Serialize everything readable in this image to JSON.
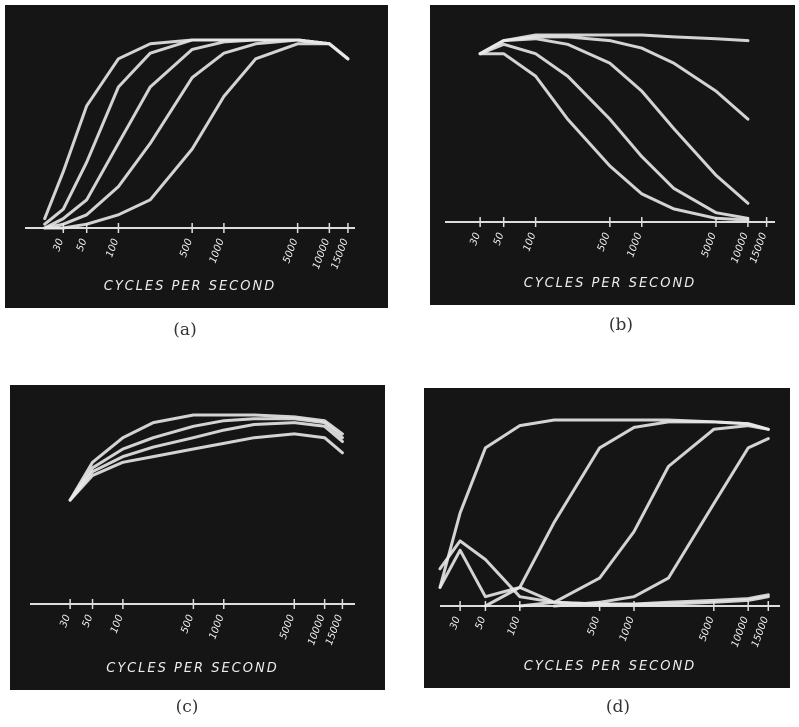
{
  "chart_data": [
    {
      "type": "line",
      "caption": "(a)",
      "xlabel": "CYCLES PER SECOND",
      "log_x": true,
      "xlim": [
        13,
        17500
      ],
      "xticks": [
        30,
        50,
        100,
        500,
        1000,
        5000,
        10000,
        15000
      ],
      "ylim": [
        0,
        1
      ],
      "x": [
        20,
        30,
        50,
        100,
        200,
        500,
        1000,
        2000,
        5000,
        10000,
        15000
      ],
      "series": [
        {
          "color": "#e8e8e8",
          "values": [
            0.05,
            0.3,
            0.65,
            0.9,
            0.98,
            1,
            1,
            1,
            1,
            0.98,
            0.9
          ]
        },
        {
          "color": "#e8e8e8",
          "values": [
            0.02,
            0.1,
            0.35,
            0.75,
            0.93,
            1,
            1,
            1,
            1,
            0.98,
            0.9
          ]
        },
        {
          "color": "#e8e8e8",
          "values": [
            0,
            0.05,
            0.15,
            0.45,
            0.75,
            0.95,
            0.99,
            1,
            1,
            0.98,
            0.9
          ]
        },
        {
          "color": "#e8e8e8",
          "values": [
            0,
            0.02,
            0.07,
            0.22,
            0.45,
            0.8,
            0.93,
            0.98,
            1,
            0.98,
            0.9
          ]
        },
        {
          "color": "#e8e8e8",
          "values": [
            0,
            0,
            0.02,
            0.07,
            0.15,
            0.42,
            0.7,
            0.9,
            0.98,
            0.98,
            0.9
          ]
        }
      ]
    },
    {
      "type": "line",
      "caption": "(b)",
      "xlabel": "CYCLES PER SECOND",
      "log_x": true,
      "xlim": [
        14,
        18000
      ],
      "xticks": [
        30,
        50,
        100,
        500,
        1000,
        5000,
        10000,
        15000
      ],
      "ylim": [
        0,
        1
      ],
      "x": [
        20,
        30,
        50,
        100,
        200,
        500,
        1000,
        2000,
        5000,
        10000,
        15000
      ],
      "series": [
        {
          "color": "#e8e8e8",
          "values": [
            null,
            0.9,
            0.97,
            1,
            1,
            1,
            1,
            0.99,
            0.98,
            0.97,
            null
          ]
        },
        {
          "color": "#e8e8e8",
          "values": [
            null,
            0.9,
            0.97,
            0.99,
            0.99,
            0.97,
            0.93,
            0.85,
            0.7,
            0.55,
            null
          ]
        },
        {
          "color": "#e8e8e8",
          "values": [
            null,
            0.9,
            0.97,
            0.98,
            0.95,
            0.85,
            0.7,
            0.5,
            0.25,
            0.1,
            null
          ]
        },
        {
          "color": "#e8e8e8",
          "values": [
            null,
            0.9,
            0.95,
            0.9,
            0.78,
            0.55,
            0.35,
            0.18,
            0.05,
            0.02,
            null
          ]
        },
        {
          "color": "#e8e8e8",
          "values": [
            null,
            0.9,
            0.9,
            0.78,
            0.55,
            0.3,
            0.15,
            0.07,
            0.02,
            0.01,
            null
          ]
        }
      ]
    },
    {
      "type": "line",
      "caption": "(c)",
      "xlabel": "CYCLES PER SECOND",
      "log_x": true,
      "xlim": [
        12,
        20000
      ],
      "xticks": [
        30,
        50,
        100,
        500,
        1000,
        5000,
        10000,
        15000
      ],
      "ylim": [
        0,
        1
      ],
      "x": [
        20,
        30,
        50,
        100,
        200,
        500,
        1000,
        2000,
        5000,
        10000,
        15000
      ],
      "series": [
        {
          "color": "#e8e8e8",
          "values": [
            null,
            0.55,
            0.75,
            0.88,
            0.96,
            1,
            1,
            1,
            0.99,
            0.97,
            0.9
          ]
        },
        {
          "color": "#e8e8e8",
          "values": [
            null,
            0.55,
            0.72,
            0.82,
            0.88,
            0.94,
            0.97,
            0.98,
            0.98,
            0.96,
            0.88
          ]
        },
        {
          "color": "#e8e8e8",
          "values": [
            null,
            0.55,
            0.7,
            0.78,
            0.83,
            0.88,
            0.92,
            0.95,
            0.96,
            0.94,
            0.86
          ]
        },
        {
          "color": "#e8e8e8",
          "values": [
            null,
            0.55,
            0.68,
            0.75,
            0.78,
            0.82,
            0.85,
            0.88,
            0.9,
            0.88,
            0.8
          ]
        }
      ]
    },
    {
      "type": "line",
      "caption": "(d)",
      "xlabel": "CYCLES PER SECOND",
      "log_x": true,
      "xlim": [
        20,
        19000
      ],
      "xticks": [
        30,
        50,
        100,
        500,
        1000,
        5000,
        10000,
        15000
      ],
      "ylim": [
        0,
        1
      ],
      "x": [
        20,
        30,
        50,
        100,
        200,
        500,
        1000,
        2000,
        5000,
        10000,
        15000
      ],
      "series": [
        {
          "color": "#e8e8e8",
          "values": [
            0.1,
            0.5,
            0.85,
            0.97,
            1,
            1,
            1,
            1,
            0.99,
            0.98,
            0.95
          ]
        },
        {
          "color": "#e8e8e8",
          "values": [
            null,
            null,
            0,
            0.1,
            0.45,
            0.85,
            0.96,
            0.99,
            0.99,
            0.98,
            0.95
          ]
        },
        {
          "color": "#e8e8e8",
          "values": [
            null,
            null,
            null,
            0,
            0.02,
            0.15,
            0.4,
            0.75,
            0.95,
            0.97,
            0.95
          ]
        },
        {
          "color": "#e8e8e8",
          "values": [
            null,
            null,
            null,
            null,
            0,
            0.02,
            0.05,
            0.15,
            0.55,
            0.85,
            0.9
          ]
        },
        {
          "color": "#e8e8e8",
          "values": [
            0.2,
            0.35,
            0.25,
            0.05,
            0.02,
            0.01,
            0.01,
            0.02,
            0.03,
            0.04,
            0.06
          ]
        },
        {
          "color": "#e8e8e8",
          "values": [
            0.1,
            0.3,
            0.05,
            0.1,
            0.02,
            0.01,
            0.01,
            0.01,
            0.02,
            0.03,
            0.05
          ]
        }
      ]
    }
  ]
}
